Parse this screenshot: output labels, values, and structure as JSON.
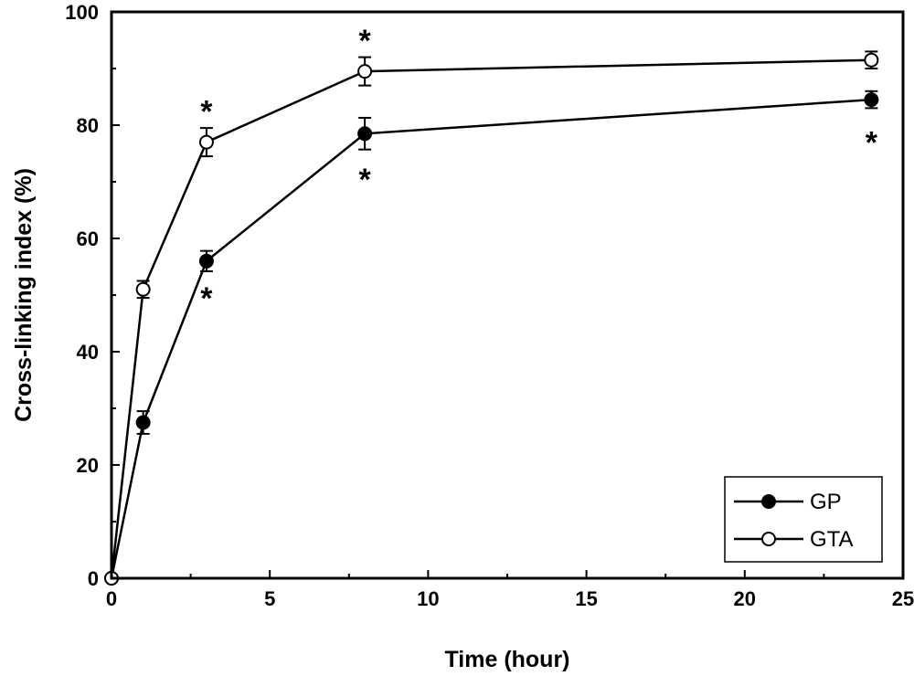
{
  "chart_data": {
    "type": "line",
    "xlabel": "Time (hour)",
    "ylabel": "Cross-linking index (%)",
    "xlim": [
      0,
      25
    ],
    "ylim": [
      0,
      100
    ],
    "xticks": [
      0,
      5,
      10,
      15,
      20,
      25
    ],
    "yticks": [
      0,
      20,
      40,
      60,
      80,
      100
    ],
    "grid": false,
    "legend_position": "bottom-right",
    "series": [
      {
        "name": "GP",
        "marker": "filled-circle",
        "x": [
          0,
          1,
          3,
          8,
          24
        ],
        "y": [
          0,
          27.5,
          56,
          78.5,
          84.5
        ],
        "err": [
          0,
          2,
          1.8,
          2.8,
          1.5
        ]
      },
      {
        "name": "GTA",
        "marker": "open-circle",
        "x": [
          0,
          1,
          3,
          8,
          24
        ],
        "y": [
          0,
          51,
          77,
          89.5,
          91.5
        ],
        "err": [
          0,
          1.5,
          2.5,
          2.5,
          1.5
        ]
      }
    ],
    "annotations": [
      {
        "text": "*",
        "x": 3,
        "y": 82.5
      },
      {
        "text": "*",
        "x": 8,
        "y": 95
      },
      {
        "text": "*",
        "x": 3,
        "y": 49.5
      },
      {
        "text": "*",
        "x": 8,
        "y": 70.5
      },
      {
        "text": "*",
        "x": 24,
        "y": 77
      }
    ]
  }
}
